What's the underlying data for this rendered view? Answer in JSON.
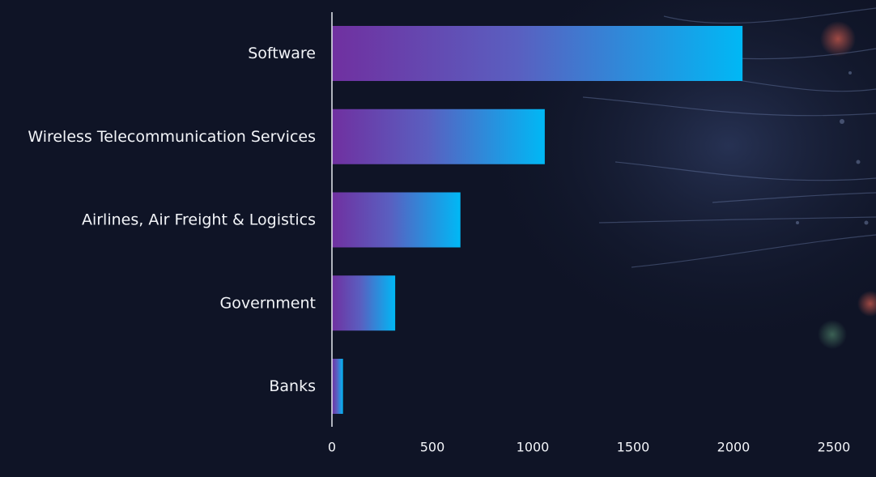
{
  "chart_data": {
    "type": "bar",
    "orientation": "horizontal",
    "categories": [
      "Software",
      "Wireless Telecommunication Services",
      "Airlines, Air Freight & Logistics",
      "Government",
      "Banks"
    ],
    "values": [
      2045,
      1060,
      640,
      315,
      55
    ],
    "xlim": [
      0,
      2500
    ],
    "xticks": [
      "0",
      "500",
      "1000",
      "1500",
      "2000",
      "2500"
    ],
    "grid": false,
    "legend": "none",
    "title": "",
    "xlabel": "",
    "ylabel": ""
  },
  "colors": {
    "background": "#0f1426",
    "bar_gradient_start": "#7030a0",
    "bar_gradient_end": "#00b8f5",
    "text": "#f2f4f8",
    "axis": "#e6e9ef"
  }
}
